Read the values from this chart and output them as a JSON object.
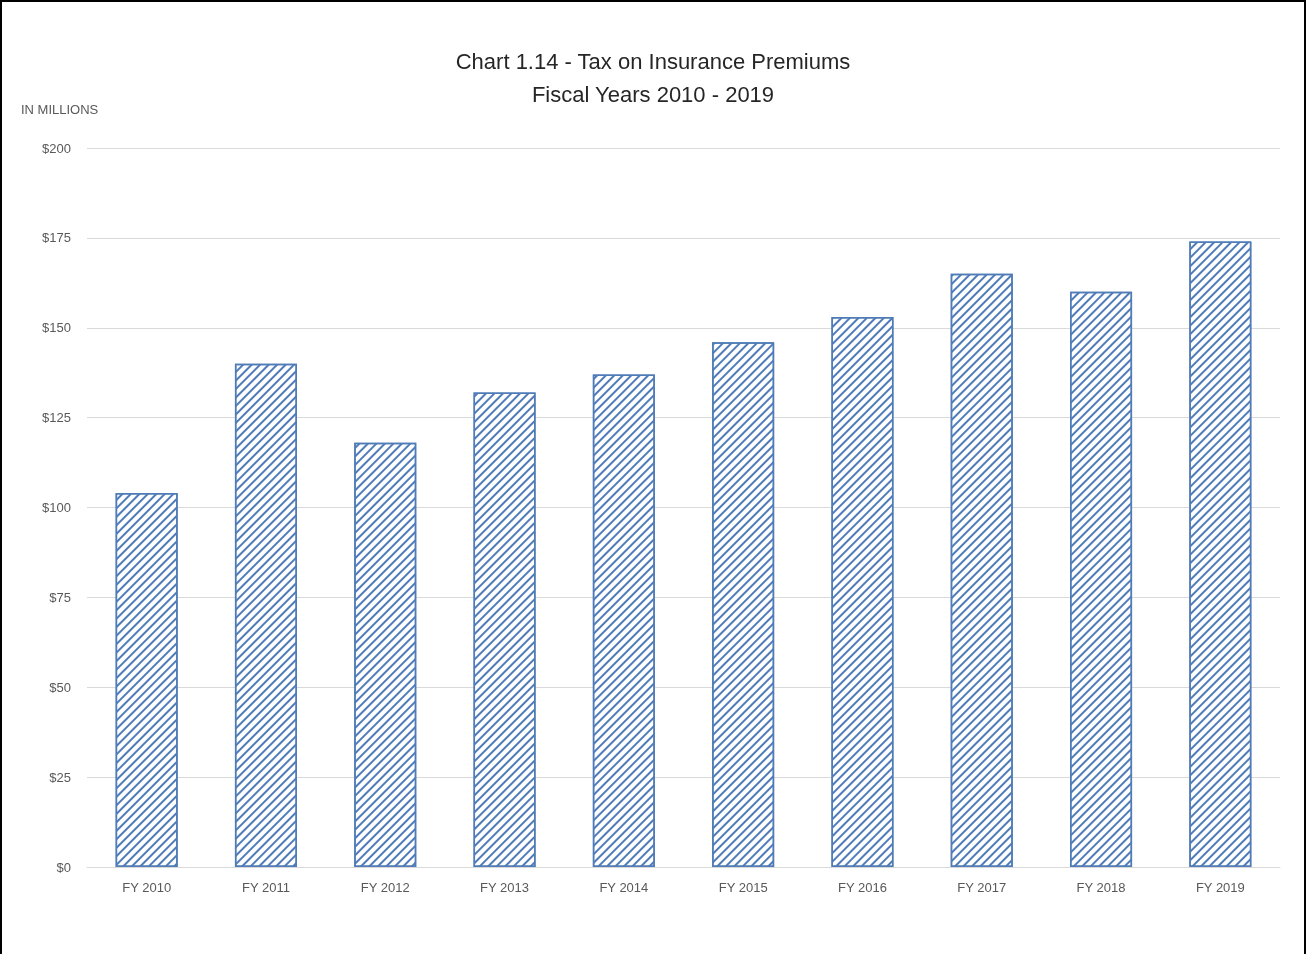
{
  "chart_data": {
    "type": "bar",
    "title": "Chart 1.14 - Tax on Insurance Premiums\nFiscal Years 2010 - 2019",
    "ylabel": "IN MILLIONS",
    "categories": [
      "FY 2010",
      "FY 2011",
      "FY 2012",
      "FY 2013",
      "FY 2014",
      "FY 2015",
      "FY 2016",
      "FY 2017",
      "FY 2018",
      "FY 2019"
    ],
    "values": [
      104,
      140,
      118,
      132,
      137,
      146,
      153,
      165,
      160,
      174
    ],
    "color": "#4f7cb8",
    "ylim": [
      0,
      200
    ],
    "yticks": [
      {
        "value": 0,
        "label": "$0"
      },
      {
        "value": 25,
        "label": "$25"
      },
      {
        "value": 50,
        "label": "$50"
      },
      {
        "value": 75,
        "label": "$75"
      },
      {
        "value": 100,
        "label": "$100"
      },
      {
        "value": 125,
        "label": "$125"
      },
      {
        "value": 150,
        "label": "$150"
      },
      {
        "value": 175,
        "label": "$175"
      },
      {
        "value": 200,
        "label": "$200"
      }
    ],
    "grid": "y"
  }
}
